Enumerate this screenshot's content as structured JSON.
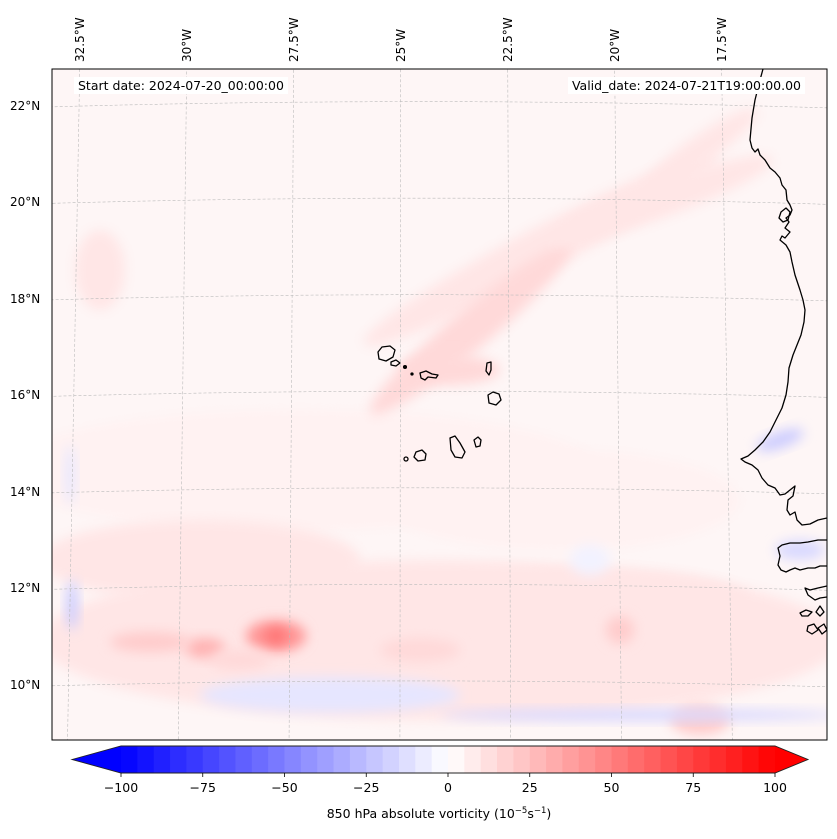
{
  "map": {
    "variable": "850 hPa absolute vorticity",
    "units_label": "(10",
    "units_exp1": "−5",
    "units_mid": "s",
    "units_exp2": "−1",
    "units_close": ")",
    "start_date_label": "Start date: 2024-07-20_00:00:00",
    "valid_date_label": "Valid_date: 2024-07-21T19:00:00.00",
    "extent": {
      "lon_min": -33.0,
      "lon_max": -15.2,
      "lat_min": 8.9,
      "lat_max": 22.8
    },
    "lon_ticks": [
      {
        "value": -32.5,
        "label": "32.5°W"
      },
      {
        "value": -30.0,
        "label": "30°W"
      },
      {
        "value": -27.5,
        "label": "27.5°W"
      },
      {
        "value": -25.0,
        "label": "25°W"
      },
      {
        "value": -22.5,
        "label": "22.5°W"
      },
      {
        "value": -20.0,
        "label": "20°W"
      },
      {
        "value": -17.5,
        "label": "17.5°W"
      }
    ],
    "lat_ticks": [
      {
        "value": 22,
        "label": "22°N"
      },
      {
        "value": 20,
        "label": "20°N"
      },
      {
        "value": 18,
        "label": "18°N"
      },
      {
        "value": 16,
        "label": "16°N"
      },
      {
        "value": 14,
        "label": "14°N"
      },
      {
        "value": 12,
        "label": "12°N"
      },
      {
        "value": 10,
        "label": "10°N"
      }
    ],
    "features": [
      {
        "name": "wave-band",
        "lon": -21.5,
        "lat": 18.6,
        "value": 20
      },
      {
        "name": "cape-verde-max",
        "lon": -23.3,
        "lat": 16.4,
        "value": 15
      },
      {
        "name": "southern-max-1",
        "lon": -27.6,
        "lat": 11.0,
        "value": 45
      },
      {
        "name": "southern-max-2",
        "lon": -29.6,
        "lat": 10.7,
        "value": 30
      },
      {
        "name": "negative-band",
        "lon": -19.5,
        "lat": 9.4,
        "value": -15
      },
      {
        "name": "western-negative",
        "lon": -32.6,
        "lat": 11.7,
        "value": -15
      }
    ]
  },
  "colorbar": {
    "min": -100,
    "max": 100,
    "step": 5,
    "extend": "both",
    "colormap": "bwr",
    "color_min": "#0000ff",
    "color_mid": "#ffffff",
    "color_max": "#ff0000",
    "ticks": [
      {
        "value": -100,
        "label": "−100"
      },
      {
        "value": -75,
        "label": "−75"
      },
      {
        "value": -50,
        "label": "−50"
      },
      {
        "value": -25,
        "label": "−25"
      },
      {
        "value": 0,
        "label": "0"
      },
      {
        "value": 25,
        "label": "25"
      },
      {
        "value": 50,
        "label": "50"
      },
      {
        "value": 75,
        "label": "75"
      },
      {
        "value": 100,
        "label": "100"
      }
    ]
  }
}
